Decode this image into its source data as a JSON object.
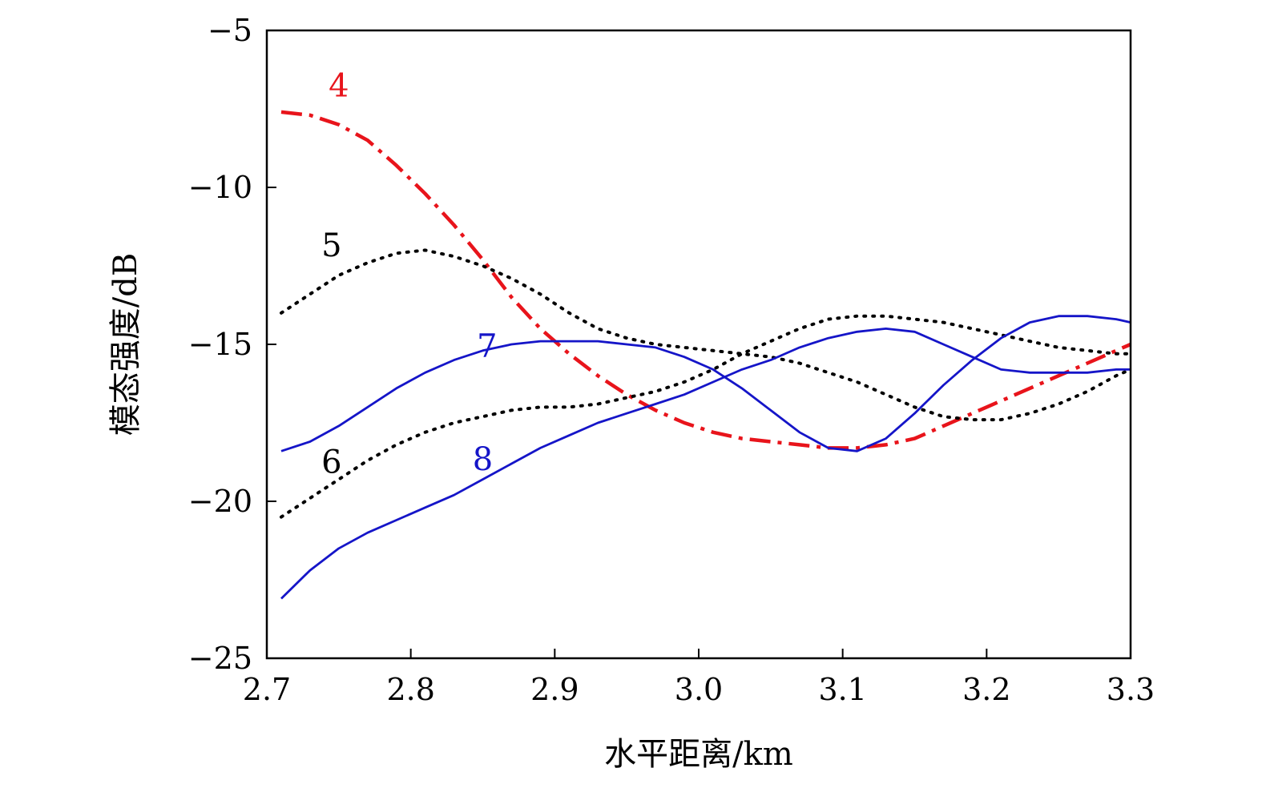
{
  "chart_data": {
    "type": "line",
    "title": "",
    "xlabel": "水平距离/km",
    "ylabel": "模态强度/dB",
    "xlim": [
      2.7,
      3.3
    ],
    "ylim": [
      -25,
      -5
    ],
    "xticks": [
      "2.7",
      "2.8",
      "2.9",
      "3.0",
      "3.1",
      "3.2",
      "3.3"
    ],
    "yticks": [
      "−5",
      "−10",
      "−15",
      "−20",
      "−25"
    ],
    "xtick_values": [
      2.7,
      2.8,
      2.9,
      3.0,
      3.1,
      3.2,
      3.3
    ],
    "ytick_values": [
      -5,
      -10,
      -15,
      -20,
      -25
    ],
    "grid": false,
    "series": [
      {
        "name": "4",
        "color": "#e8141b",
        "style": "dashdot",
        "label_at": [
          2.75,
          -7.1
        ],
        "x": [
          2.71,
          2.73,
          2.75,
          2.77,
          2.79,
          2.81,
          2.83,
          2.85,
          2.87,
          2.89,
          2.91,
          2.93,
          2.95,
          2.97,
          2.99,
          3.01,
          3.03,
          3.05,
          3.07,
          3.09,
          3.11,
          3.13,
          3.15,
          3.17,
          3.19,
          3.21,
          3.23,
          3.25,
          3.27,
          3.29,
          3.3
        ],
        "y": [
          -7.6,
          -7.7,
          -8.0,
          -8.5,
          -9.3,
          -10.2,
          -11.2,
          -12.3,
          -13.5,
          -14.5,
          -15.3,
          -16.0,
          -16.6,
          -17.1,
          -17.5,
          -17.8,
          -18.0,
          -18.1,
          -18.2,
          -18.3,
          -18.3,
          -18.2,
          -18.0,
          -17.6,
          -17.2,
          -16.8,
          -16.4,
          -16.0,
          -15.6,
          -15.2,
          -15.0
        ]
      },
      {
        "name": "5",
        "color": "#000000",
        "style": "dotted",
        "label_at": [
          2.745,
          -12.2
        ],
        "x": [
          2.71,
          2.73,
          2.75,
          2.77,
          2.79,
          2.81,
          2.83,
          2.85,
          2.87,
          2.89,
          2.91,
          2.93,
          2.95,
          2.97,
          2.99,
          3.01,
          3.03,
          3.05,
          3.07,
          3.09,
          3.11,
          3.13,
          3.15,
          3.17,
          3.19,
          3.21,
          3.23,
          3.25,
          3.27,
          3.29,
          3.3
        ],
        "y": [
          -14.0,
          -13.4,
          -12.8,
          -12.4,
          -12.1,
          -12.0,
          -12.2,
          -12.5,
          -12.9,
          -13.4,
          -14.0,
          -14.5,
          -14.8,
          -15.0,
          -15.1,
          -15.2,
          -15.3,
          -15.4,
          -15.6,
          -15.9,
          -16.2,
          -16.6,
          -17.0,
          -17.3,
          -17.4,
          -17.4,
          -17.2,
          -16.9,
          -16.5,
          -16.0,
          -15.8
        ]
      },
      {
        "name": "6",
        "color": "#000000",
        "style": "dotted",
        "label_at": [
          2.745,
          -19.1
        ],
        "x": [
          2.71,
          2.73,
          2.75,
          2.77,
          2.79,
          2.81,
          2.83,
          2.85,
          2.87,
          2.89,
          2.91,
          2.93,
          2.95,
          2.97,
          2.99,
          3.01,
          3.03,
          3.05,
          3.07,
          3.09,
          3.11,
          3.13,
          3.15,
          3.17,
          3.19,
          3.21,
          3.23,
          3.25,
          3.27,
          3.29,
          3.3
        ],
        "y": [
          -20.5,
          -19.9,
          -19.3,
          -18.7,
          -18.2,
          -17.8,
          -17.5,
          -17.3,
          -17.1,
          -17.0,
          -17.0,
          -16.9,
          -16.7,
          -16.5,
          -16.2,
          -15.8,
          -15.3,
          -14.9,
          -14.5,
          -14.2,
          -14.1,
          -14.1,
          -14.2,
          -14.3,
          -14.5,
          -14.7,
          -14.9,
          -15.1,
          -15.2,
          -15.3,
          -15.3
        ]
      },
      {
        "name": "7",
        "color": "#1515c8",
        "style": "solid",
        "label_at": [
          2.853,
          -15.4
        ],
        "x": [
          2.71,
          2.73,
          2.75,
          2.77,
          2.79,
          2.81,
          2.83,
          2.85,
          2.87,
          2.89,
          2.91,
          2.93,
          2.95,
          2.97,
          2.99,
          3.01,
          3.03,
          3.05,
          3.07,
          3.09,
          3.11,
          3.13,
          3.15,
          3.17,
          3.19,
          3.21,
          3.23,
          3.25,
          3.27,
          3.29,
          3.3
        ],
        "y": [
          -18.4,
          -18.1,
          -17.6,
          -17.0,
          -16.4,
          -15.9,
          -15.5,
          -15.2,
          -15.0,
          -14.9,
          -14.9,
          -14.9,
          -15.0,
          -15.1,
          -15.4,
          -15.8,
          -16.4,
          -17.1,
          -17.8,
          -18.3,
          -18.4,
          -18.0,
          -17.2,
          -16.3,
          -15.5,
          -14.8,
          -14.3,
          -14.1,
          -14.1,
          -14.2,
          -14.3
        ]
      },
      {
        "name": "8",
        "color": "#1515c8",
        "style": "solid",
        "label_at": [
          2.85,
          -19.0
        ],
        "x": [
          2.71,
          2.73,
          2.75,
          2.77,
          2.79,
          2.81,
          2.83,
          2.85,
          2.87,
          2.89,
          2.91,
          2.93,
          2.95,
          2.97,
          2.99,
          3.01,
          3.03,
          3.05,
          3.07,
          3.09,
          3.11,
          3.13,
          3.15,
          3.17,
          3.19,
          3.21,
          3.23,
          3.25,
          3.27,
          3.29,
          3.3
        ],
        "y": [
          -23.1,
          -22.2,
          -21.5,
          -21.0,
          -20.6,
          -20.2,
          -19.8,
          -19.3,
          -18.8,
          -18.3,
          -17.9,
          -17.5,
          -17.2,
          -16.9,
          -16.6,
          -16.2,
          -15.8,
          -15.5,
          -15.1,
          -14.8,
          -14.6,
          -14.5,
          -14.6,
          -15.0,
          -15.4,
          -15.8,
          -15.9,
          -15.9,
          -15.9,
          -15.8,
          -15.8
        ]
      }
    ]
  }
}
